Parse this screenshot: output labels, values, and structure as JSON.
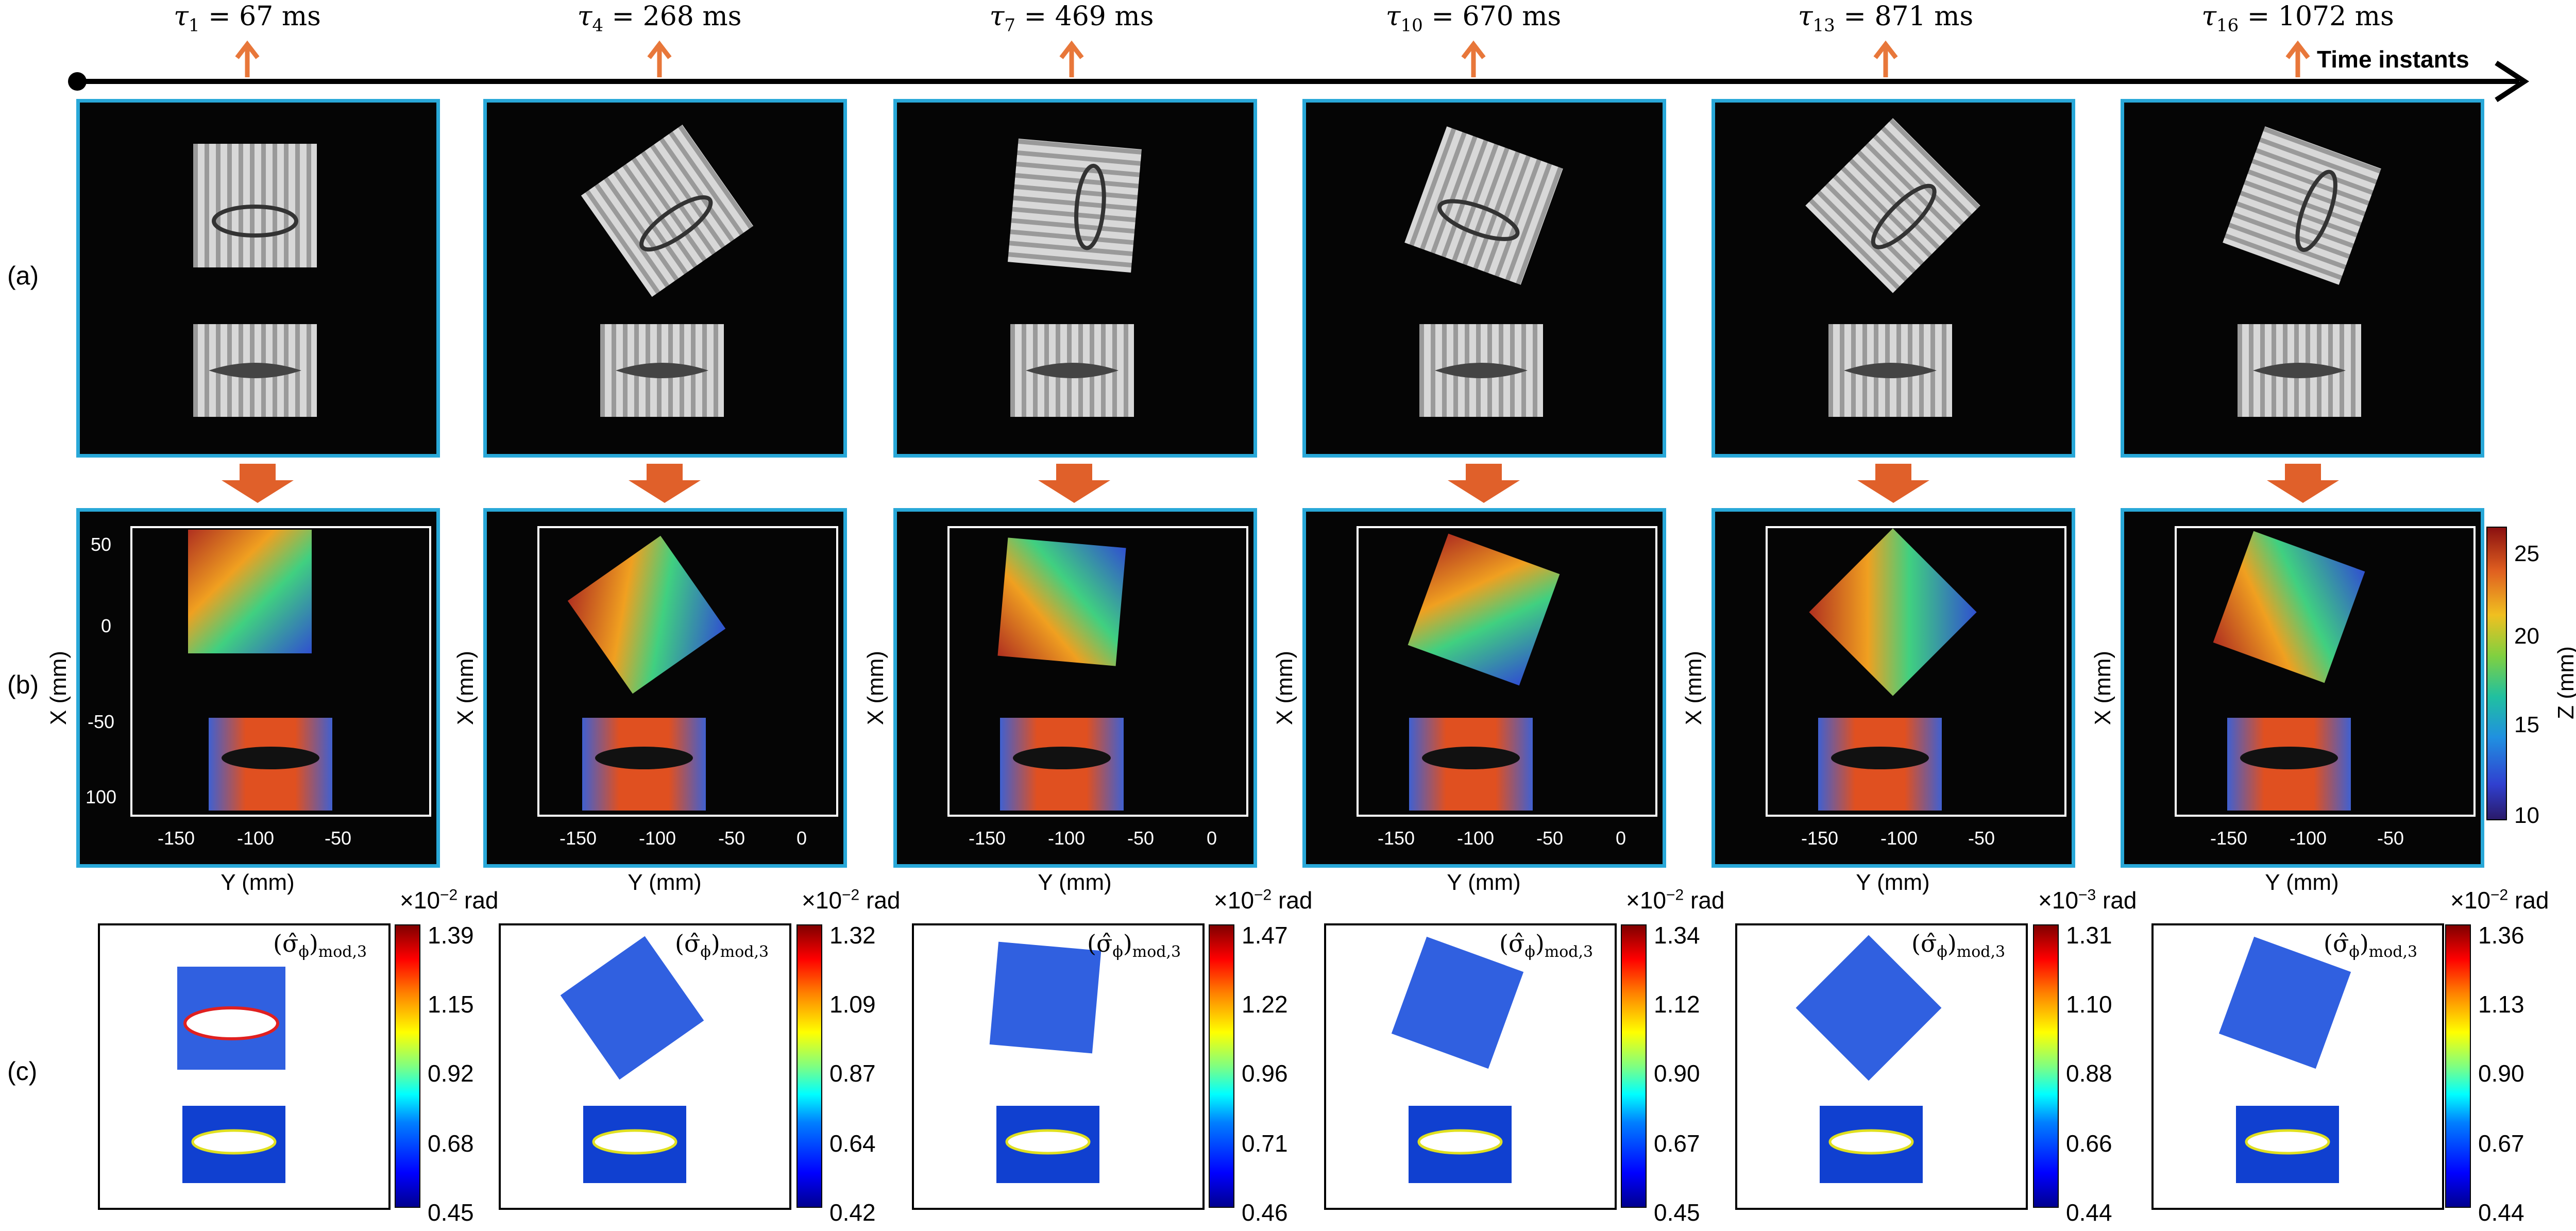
{
  "row_labels": {
    "a": "(a)",
    "b": "(b)",
    "c": "(c)"
  },
  "timeline": {
    "end_label": "Time instants"
  },
  "instants": [
    {
      "sym": "τ",
      "idx": "1",
      "eq": " = 67 ms"
    },
    {
      "sym": "τ",
      "idx": "4",
      "eq": " = 268 ms"
    },
    {
      "sym": "τ",
      "idx": "7",
      "eq": " = 469 ms"
    },
    {
      "sym": "τ",
      "idx": "10",
      "eq": " = 670 ms"
    },
    {
      "sym": "τ",
      "idx": "13",
      "eq": " = 871 ms"
    },
    {
      "sym": "τ",
      "idx": "16",
      "eq": " = 1072 ms"
    }
  ],
  "recon_axes": {
    "xlabel": "Y (mm)",
    "ylabel": "X (mm)",
    "yticks": [
      "50",
      "0",
      "-50",
      "100"
    ],
    "xticks_short": [
      "-150",
      "-100",
      "-50"
    ],
    "xticks_long": [
      "-150",
      "-100",
      "-50",
      "0"
    ]
  },
  "z_colorbar": {
    "label": "Z (mm)",
    "ticks": [
      "25",
      "20",
      "15",
      "10"
    ]
  },
  "sigma_label": {
    "base": "(σ̂",
    "sub_phi": "ϕ",
    "close": ")",
    "sub": "mod,3"
  },
  "colorbars": [
    {
      "exp_base": "×10",
      "exp": "−2",
      "unit": " rad",
      "ticks": [
        "1.39",
        "1.15",
        "0.92",
        "0.68",
        "0.45"
      ]
    },
    {
      "exp_base": "×10",
      "exp": "−2",
      "unit": " rad",
      "ticks": [
        "1.32",
        "1.09",
        "0.87",
        "0.64",
        "0.42"
      ]
    },
    {
      "exp_base": "×10",
      "exp": "−2",
      "unit": " rad",
      "ticks": [
        "1.47",
        "1.22",
        "0.96",
        "0.71",
        "0.46"
      ]
    },
    {
      "exp_base": "×10",
      "exp": "−2",
      "unit": " rad",
      "ticks": [
        "1.34",
        "1.12",
        "0.90",
        "0.67",
        "0.45"
      ]
    },
    {
      "exp_base": "×10",
      "exp": "−3",
      "unit": " rad",
      "ticks": [
        "1.31",
        "1.10",
        "0.88",
        "0.66",
        "0.44"
      ]
    },
    {
      "exp_base": "×10",
      "exp": "−2",
      "unit": " rad",
      "ticks": [
        "1.36",
        "1.13",
        "0.90",
        "0.67",
        "0.44"
      ]
    }
  ],
  "colors": {
    "frame": "#29a8d8",
    "arrow": "#e8773a",
    "down_arrow": "#e0602a"
  }
}
